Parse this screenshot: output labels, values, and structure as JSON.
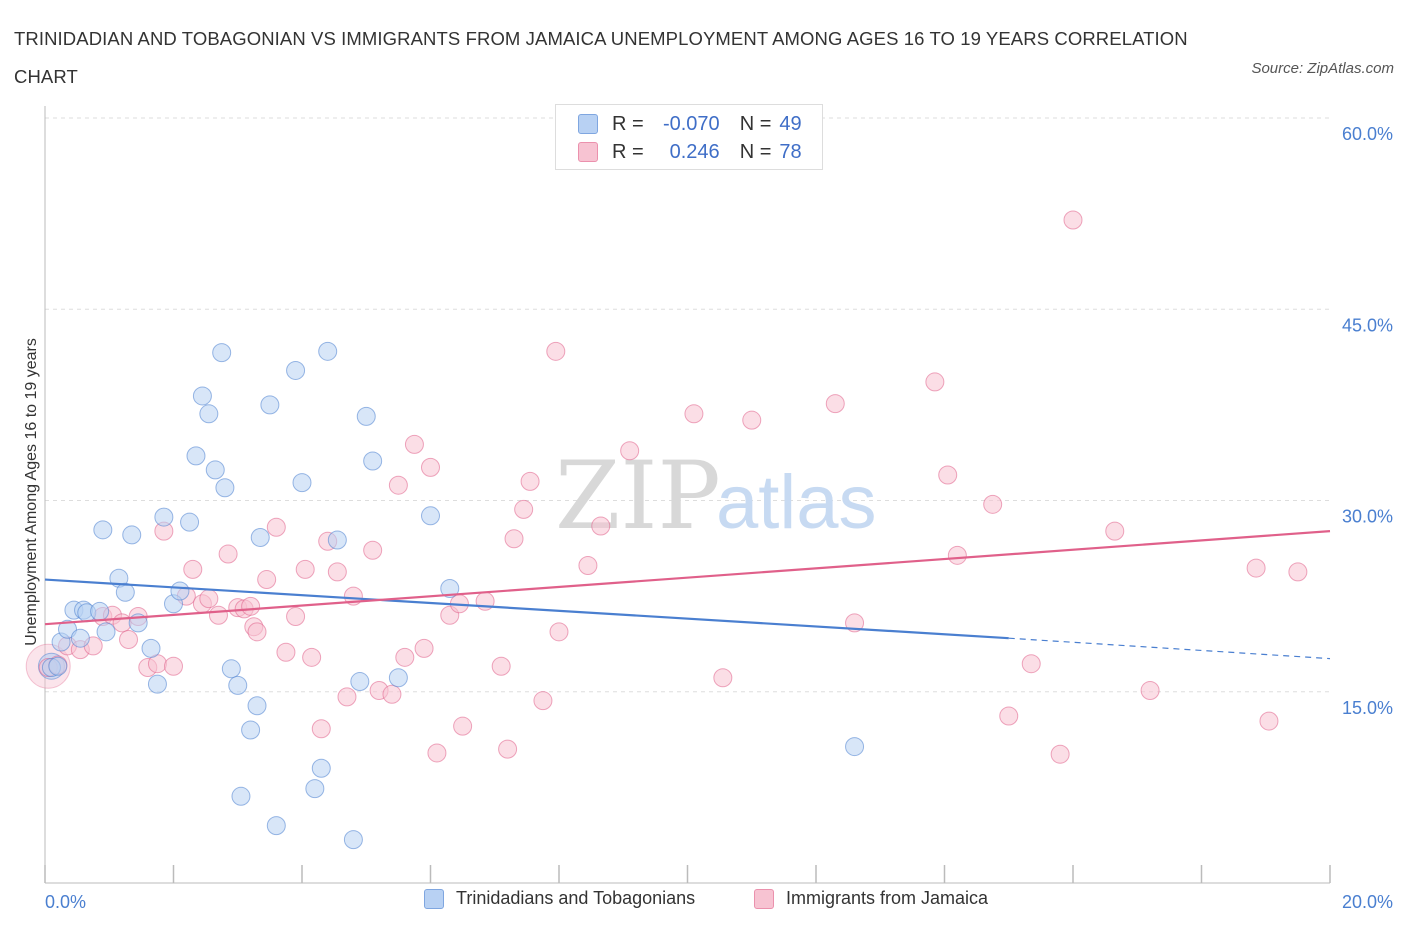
{
  "title": "TRINIDADIAN AND TOBAGONIAN VS IMMIGRANTS FROM JAMAICA UNEMPLOYMENT AMONG AGES 16 TO 19 YEARS CORRELATION CHART",
  "source": "Source: ZipAtlas.com",
  "watermark": {
    "zip": "ZIP",
    "atlas": "atlas"
  },
  "legend_top": [
    {
      "r_label": "R =",
      "r_value": "-0.070",
      "n_label": "N =",
      "n_value": "49",
      "color": "#b8d1f3"
    },
    {
      "r_label": "R =",
      "r_value": "0.246",
      "n_label": "N =",
      "n_value": "78",
      "color": "#f7c3d2"
    }
  ],
  "chart_data": {
    "type": "scatter",
    "ylabel": "Unemployment Among Ages 16 to 19 years",
    "xlim": [
      0,
      20
    ],
    "ylim": [
      0,
      60
    ],
    "y_ticks": [
      15,
      30,
      45,
      60
    ],
    "y_tick_labels": [
      "15.0%",
      "30.0%",
      "45.0%",
      "60.0%"
    ],
    "x_tick_labels": [
      "0.0%",
      "20.0%"
    ],
    "grid": "horizontal dashed",
    "series": [
      {
        "name": "Trinidadians and Tobagonians",
        "color": "#4a7fd0",
        "fill": "#b8d1f3",
        "trend": {
          "x": [
            0,
            15.0
          ],
          "y": [
            23.8,
            19.2
          ],
          "dashed_to": [
            20,
            17.6
          ]
        },
        "points": [
          [
            0.1,
            16.9
          ],
          [
            0.2,
            17.0
          ],
          [
            0.25,
            18.9
          ],
          [
            0.35,
            19.9
          ],
          [
            0.45,
            21.4
          ],
          [
            0.6,
            21.4
          ],
          [
            0.55,
            19.2
          ],
          [
            0.65,
            21.2
          ],
          [
            0.85,
            21.3
          ],
          [
            0.95,
            19.7
          ],
          [
            1.15,
            23.9
          ],
          [
            1.25,
            22.8
          ],
          [
            1.45,
            20.4
          ],
          [
            1.65,
            18.4
          ],
          [
            1.75,
            15.6
          ],
          [
            1.85,
            28.7
          ],
          [
            2.0,
            21.9
          ],
          [
            2.1,
            22.9
          ],
          [
            2.25,
            28.3
          ],
          [
            2.35,
            33.5
          ],
          [
            2.55,
            36.8
          ],
          [
            2.65,
            32.4
          ],
          [
            2.45,
            38.2
          ],
          [
            2.8,
            31.0
          ],
          [
            2.75,
            41.6
          ],
          [
            2.9,
            16.8
          ],
          [
            3.0,
            15.5
          ],
          [
            3.05,
            6.8
          ],
          [
            3.2,
            12.0
          ],
          [
            3.3,
            13.9
          ],
          [
            3.35,
            27.1
          ],
          [
            3.5,
            37.5
          ],
          [
            3.6,
            4.5
          ],
          [
            3.9,
            40.2
          ],
          [
            4.0,
            31.4
          ],
          [
            4.2,
            7.4
          ],
          [
            4.3,
            9.0
          ],
          [
            4.4,
            41.7
          ],
          [
            4.55,
            26.9
          ],
          [
            4.8,
            3.4
          ],
          [
            4.9,
            15.8
          ],
          [
            5.0,
            36.6
          ],
          [
            5.1,
            33.1
          ],
          [
            5.5,
            16.1
          ],
          [
            6.0,
            28.8
          ],
          [
            6.3,
            23.1
          ],
          [
            12.6,
            10.7
          ],
          [
            0.9,
            27.7
          ],
          [
            1.35,
            27.3
          ]
        ]
      },
      {
        "name": "Immigrants from Jamaica",
        "color": "#e0608a",
        "fill": "#f7c3d2",
        "trend": {
          "x": [
            0,
            20
          ],
          "y": [
            20.3,
            27.6
          ]
        },
        "points": [
          [
            0.05,
            16.9
          ],
          [
            0.2,
            17.1
          ],
          [
            0.35,
            18.6
          ],
          [
            0.55,
            18.3
          ],
          [
            0.75,
            18.6
          ],
          [
            0.9,
            20.9
          ],
          [
            1.05,
            21.0
          ],
          [
            1.2,
            20.4
          ],
          [
            1.3,
            19.1
          ],
          [
            1.45,
            20.9
          ],
          [
            1.6,
            16.9
          ],
          [
            1.75,
            17.2
          ],
          [
            1.85,
            27.6
          ],
          [
            2.0,
            17.0
          ],
          [
            2.2,
            22.5
          ],
          [
            2.3,
            24.6
          ],
          [
            2.45,
            21.9
          ],
          [
            2.55,
            22.3
          ],
          [
            2.7,
            21.0
          ],
          [
            2.85,
            25.8
          ],
          [
            3.0,
            21.6
          ],
          [
            3.1,
            21.5
          ],
          [
            3.2,
            21.7
          ],
          [
            3.25,
            20.1
          ],
          [
            3.3,
            19.7
          ],
          [
            3.45,
            23.8
          ],
          [
            3.6,
            27.9
          ],
          [
            3.75,
            18.1
          ],
          [
            3.9,
            20.9
          ],
          [
            4.05,
            24.6
          ],
          [
            4.15,
            17.7
          ],
          [
            4.3,
            12.1
          ],
          [
            4.4,
            26.8
          ],
          [
            4.55,
            24.4
          ],
          [
            4.7,
            14.6
          ],
          [
            4.8,
            22.5
          ],
          [
            5.1,
            26.1
          ],
          [
            5.2,
            15.1
          ],
          [
            5.4,
            14.8
          ],
          [
            5.5,
            31.2
          ],
          [
            5.6,
            17.7
          ],
          [
            5.75,
            34.4
          ],
          [
            5.9,
            18.4
          ],
          [
            6.0,
            32.6
          ],
          [
            6.1,
            10.2
          ],
          [
            6.3,
            21.0
          ],
          [
            6.45,
            21.9
          ],
          [
            6.5,
            12.3
          ],
          [
            6.85,
            22.1
          ],
          [
            7.1,
            17.0
          ],
          [
            7.2,
            10.5
          ],
          [
            7.3,
            27.0
          ],
          [
            7.45,
            29.3
          ],
          [
            7.55,
            31.5
          ],
          [
            7.75,
            14.3
          ],
          [
            7.95,
            41.7
          ],
          [
            8.0,
            19.7
          ],
          [
            8.45,
            24.9
          ],
          [
            8.65,
            28.0
          ],
          [
            9.1,
            33.9
          ],
          [
            10.1,
            36.8
          ],
          [
            10.55,
            16.1
          ],
          [
            11.0,
            36.3
          ],
          [
            12.3,
            37.6
          ],
          [
            12.6,
            20.4
          ],
          [
            13.85,
            39.3
          ],
          [
            14.05,
            32.0
          ],
          [
            14.2,
            25.7
          ],
          [
            14.75,
            29.7
          ],
          [
            15.0,
            13.1
          ],
          [
            15.35,
            17.2
          ],
          [
            15.8,
            10.1
          ],
          [
            16.0,
            52.0
          ],
          [
            16.65,
            27.6
          ],
          [
            17.2,
            15.1
          ],
          [
            18.85,
            24.7
          ],
          [
            19.05,
            12.7
          ],
          [
            19.5,
            24.4
          ]
        ]
      }
    ]
  }
}
